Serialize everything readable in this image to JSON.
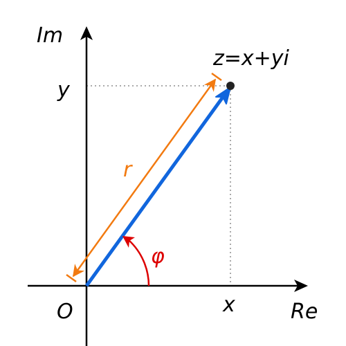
{
  "axes": {
    "real": "Re",
    "imaginary": "Im",
    "origin": "O"
  },
  "coordinates": {
    "x": "x",
    "y": "y"
  },
  "point": {
    "label": "z=x+yi"
  },
  "modulus": {
    "label": "r"
  },
  "argument": {
    "label": "φ"
  }
}
